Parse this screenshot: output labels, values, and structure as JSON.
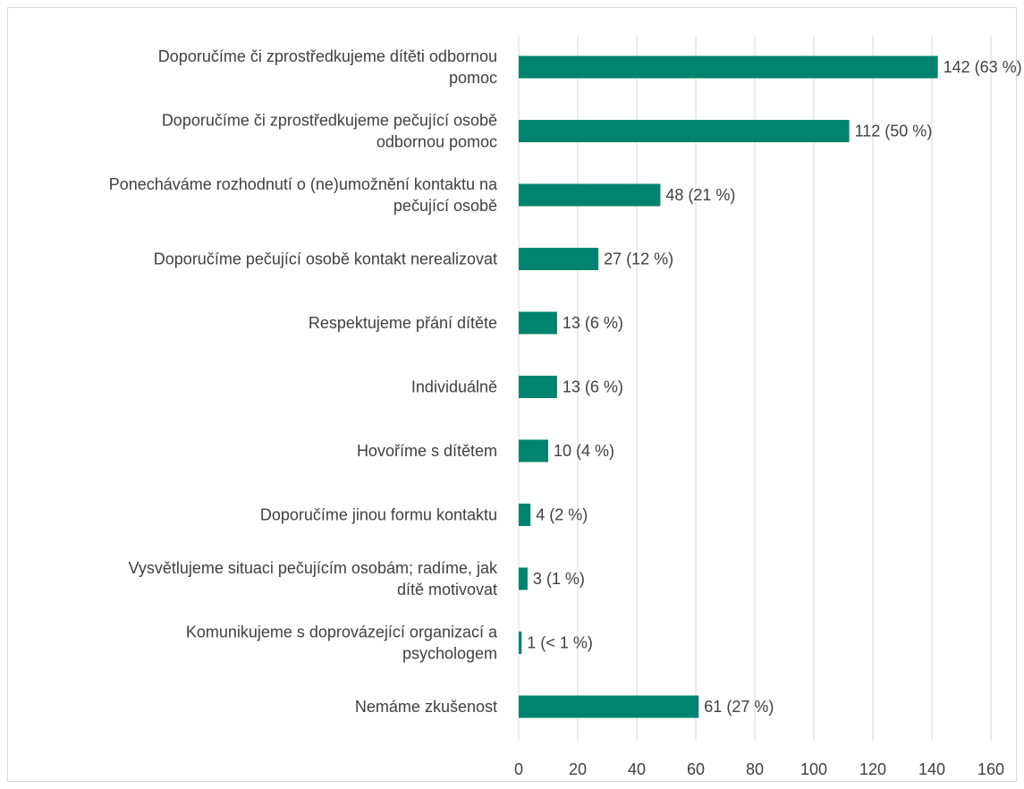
{
  "chart_data": {
    "type": "bar",
    "orientation": "horizontal",
    "categories": [
      [
        "Doporučíme či zprostředkujeme dítěti odbornou",
        "pomoc"
      ],
      [
        "Doporučíme či zprostředkujeme pečující osobě",
        "odbornou pomoc"
      ],
      [
        "Ponecháváme rozhodnutí o (ne)umožnění kontaktu na",
        "pečující osobě"
      ],
      [
        "Doporučíme pečující osobě kontakt nerealizovat"
      ],
      [
        "Respektujeme přání dítěte"
      ],
      [
        "Individuálně"
      ],
      [
        "Hovoříme s dítětem"
      ],
      [
        "Doporučíme jinou formu kontaktu"
      ],
      [
        "Vysvětlujeme situaci pečujícím osobám; radíme, jak",
        "dítě motivovat"
      ],
      [
        "Komunikujeme s doprovázející organizací a",
        "psychologem"
      ],
      [
        "Nemáme zkušenost"
      ]
    ],
    "values": [
      142,
      112,
      48,
      27,
      13,
      13,
      10,
      4,
      3,
      1,
      61
    ],
    "data_labels": [
      "142 (63 %)",
      "112 (50 %)",
      "48 (21 %)",
      "27 (12 %)",
      "13 (6 %)",
      "13 (6 %)",
      "10 (4 %)",
      "4 (2 %)",
      "3 (1 %)",
      "1 (< 1 %)",
      "61 (27 %)"
    ],
    "xticks": [
      "0",
      "20",
      "40",
      "60",
      "80",
      "100",
      "120",
      "140",
      "160"
    ],
    "xlim": [
      0,
      160
    ],
    "grid": "vertical",
    "bar_color": "#00846f",
    "grid_color": "#d9d9d9",
    "title": "",
    "xlabel": "",
    "ylabel": ""
  }
}
